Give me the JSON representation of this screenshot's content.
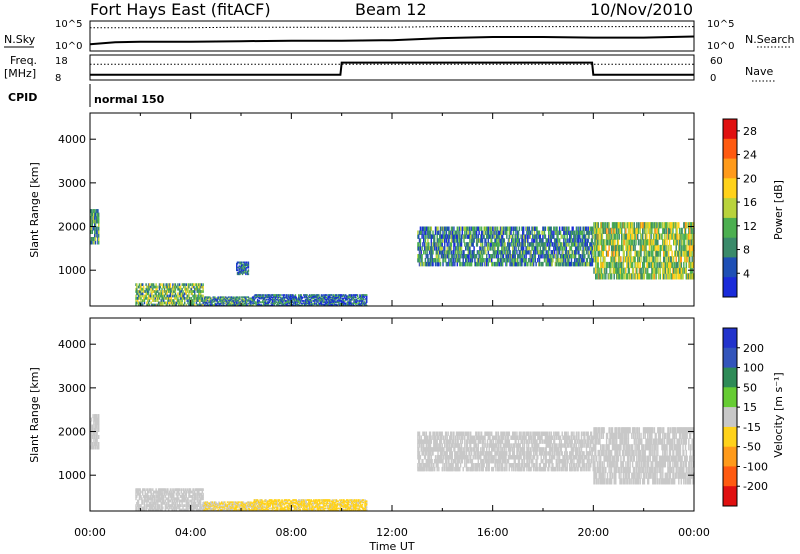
{
  "title": {
    "radar": "Fort Hays East (fitACF)",
    "beam": "Beam 12",
    "date": "10/Nov/2010"
  },
  "labels": {
    "nsky": "N.Sky",
    "nsearch": "N.Search",
    "freq": "Freq.",
    "freq_unit": "[MHz]",
    "nave": "Nave",
    "cpid": "CPID",
    "cpid_value": "normal 150",
    "x_axis": "Time UT",
    "y_axis": "Slant Range [km]",
    "power_cb": "Power [dB]",
    "velocity_cb": "Velocity [m s⁻¹]"
  },
  "noise_panel": {
    "left_ticks": [
      "10^5",
      "10^0"
    ],
    "right_ticks": [
      "10^5",
      "10^0"
    ]
  },
  "freq_panel": {
    "left_ticks": [
      "18",
      "8"
    ],
    "right_ticks": [
      "60",
      "0"
    ]
  },
  "colors": {
    "power": [
      "#1a2bd9",
      "#1e4fb5",
      "#3a8a6a",
      "#4caf50",
      "#b9d33c",
      "#ffd21a",
      "#ff9a1a",
      "#ff5a10",
      "#e01010"
    ],
    "velocity": [
      "#2233cc",
      "#3355bb",
      "#2e8b57",
      "#66cc33",
      "#c8c8c8",
      "#ffd21a",
      "#ff9a1a",
      "#ff5a10",
      "#e01010"
    ]
  },
  "chart_data": [
    {
      "type": "line",
      "name": "noise-panel",
      "x": [
        0,
        1,
        2,
        4,
        6,
        8,
        10,
        12,
        14,
        16,
        18,
        20,
        22,
        24
      ],
      "series": [
        {
          "name": "N.Sky",
          "values": [
            0.9,
            1.3,
            1.4,
            1.4,
            1.5,
            1.6,
            1.6,
            1.7,
            2.1,
            2.3,
            2.3,
            2.2,
            2.2,
            2.4
          ]
        },
        {
          "name": "N.Search",
          "values": [
            4.1,
            4.1,
            4.1,
            4.1,
            4.2,
            4.2,
            4.2,
            4.2,
            4.3,
            4.3,
            4.3,
            4.3,
            4.3,
            4.3
          ]
        }
      ],
      "xlim": [
        0,
        24
      ]
    },
    {
      "type": "line",
      "name": "frequency-panel",
      "x": [
        0,
        9.95,
        10,
        19.95,
        20,
        24
      ],
      "series": [
        {
          "name": "Freq.",
          "values": [
            10.6,
            10.6,
            16.7,
            16.7,
            10.6,
            10.6
          ]
        },
        {
          "name": "Nave",
          "values": [
            47,
            47,
            47,
            47,
            47,
            47
          ]
        }
      ],
      "xlim": [
        0,
        24
      ]
    },
    {
      "type": "heatmap",
      "name": "power-panel",
      "xlabel": "Time UT",
      "ylabel": "Slant Range [km]",
      "xlim": [
        0,
        24
      ],
      "ylim": [
        180,
        4600
      ],
      "x_ticks": [
        "00:00",
        "04:00",
        "08:00",
        "12:00",
        "16:00",
        "20:00",
        "00:00"
      ],
      "y_ticks": [
        1000,
        2000,
        3000,
        4000
      ],
      "colorbar": {
        "label": "Power [dB]",
        "ticks": [
          4,
          8,
          12,
          16,
          20,
          24,
          28
        ],
        "range": [
          0,
          30
        ]
      },
      "regions": [
        {
          "t0": 0.0,
          "t1": 0.35,
          "r0": 1600,
          "r1": 2400,
          "value": 10
        },
        {
          "t0": 1.8,
          "t1": 4.5,
          "r0": 180,
          "r1": 700,
          "value": 12
        },
        {
          "t0": 4.5,
          "t1": 6.5,
          "r0": 180,
          "r1": 400,
          "value": 8
        },
        {
          "t0": 5.8,
          "t1": 6.3,
          "r0": 900,
          "r1": 1200,
          "value": 6
        },
        {
          "t0": 6.5,
          "t1": 11.0,
          "r0": 180,
          "r1": 450,
          "value": 6
        },
        {
          "t0": 13.0,
          "t1": 20.0,
          "r0": 1100,
          "r1": 2000,
          "value": 8
        },
        {
          "t0": 20.0,
          "t1": 24.0,
          "r0": 800,
          "r1": 2100,
          "value": 14
        }
      ]
    },
    {
      "type": "heatmap",
      "name": "velocity-panel",
      "xlabel": "Time UT",
      "ylabel": "Slant Range [km]",
      "xlim": [
        0,
        24
      ],
      "ylim": [
        180,
        4600
      ],
      "x_ticks": [
        "00:00",
        "04:00",
        "08:00",
        "12:00",
        "16:00",
        "20:00",
        "00:00"
      ],
      "y_ticks": [
        1000,
        2000,
        3000,
        4000
      ],
      "colorbar": {
        "label": "Velocity [m s⁻¹]",
        "ticks": [
          200,
          100,
          50,
          15,
          -15,
          -50,
          -100,
          -200
        ],
        "range": [
          -250,
          250
        ]
      },
      "regions": [
        {
          "t0": 0.0,
          "t1": 0.35,
          "r0": 1600,
          "r1": 2400,
          "value": 0
        },
        {
          "t0": 1.8,
          "t1": 4.5,
          "r0": 180,
          "r1": 700,
          "value": 0
        },
        {
          "t0": 4.5,
          "t1": 6.5,
          "r0": 180,
          "r1": 400,
          "value": -30
        },
        {
          "t0": 6.5,
          "t1": 11.0,
          "r0": 180,
          "r1": 450,
          "value": -40
        },
        {
          "t0": 13.0,
          "t1": 20.0,
          "r0": 1100,
          "r1": 2000,
          "value": 0
        },
        {
          "t0": 20.0,
          "t1": 24.0,
          "r0": 800,
          "r1": 2100,
          "value": 0
        }
      ]
    }
  ]
}
